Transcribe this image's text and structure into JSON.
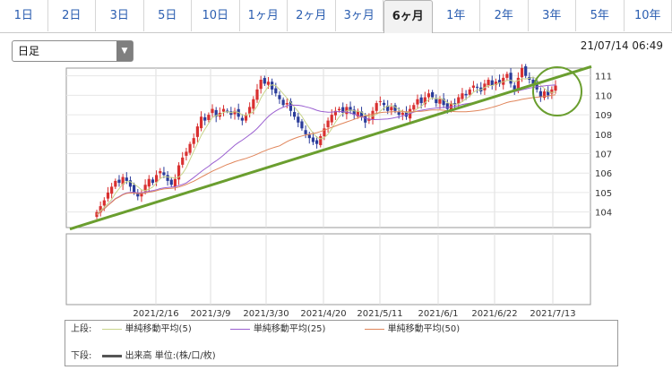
{
  "tabs": [
    {
      "label": "1日"
    },
    {
      "label": "2日"
    },
    {
      "label": "3日"
    },
    {
      "label": "5日"
    },
    {
      "label": "10日"
    },
    {
      "label": "1ヶ月"
    },
    {
      "label": "2ヶ月"
    },
    {
      "label": "3ヶ月"
    },
    {
      "label": "6ヶ月",
      "active": true
    },
    {
      "label": "1年"
    },
    {
      "label": "2年"
    },
    {
      "label": "3年"
    },
    {
      "label": "5年"
    },
    {
      "label": "10年"
    }
  ],
  "period_select": {
    "value": "日足"
  },
  "timestamp": "21/07/14 06:49",
  "chart_data": {
    "type": "candlestick",
    "y_ticks": [
      104,
      105,
      106,
      107,
      108,
      109,
      110,
      111
    ],
    "ylim": [
      103.2,
      111.4
    ],
    "x_ticks": [
      "2021/2/16",
      "2021/3/9",
      "2021/3/30",
      "2021/4/20",
      "2021/5/11",
      "2021/6/1",
      "2021/6/22",
      "2021/7/13"
    ],
    "closes": [
      104.0,
      104.3,
      104.6,
      105.0,
      105.3,
      105.6,
      105.5,
      105.8,
      105.6,
      105.3,
      105.0,
      104.8,
      105.0,
      105.4,
      105.7,
      105.5,
      105.9,
      106.1,
      105.9,
      105.6,
      105.4,
      105.7,
      106.4,
      106.8,
      107.1,
      107.5,
      107.8,
      108.4,
      108.9,
      108.7,
      109.0,
      109.3,
      108.9,
      109.1,
      109.3,
      109.2,
      109.0,
      109.2,
      108.9,
      108.7,
      109.0,
      109.4,
      109.8,
      110.3,
      110.8,
      110.6,
      110.7,
      110.3,
      110.1,
      109.8,
      109.5,
      109.6,
      109.2,
      108.9,
      108.6,
      108.3,
      108.0,
      107.8,
      107.6,
      107.5,
      107.9,
      108.3,
      108.7,
      109.0,
      109.2,
      109.3,
      109.1,
      109.4,
      109.2,
      109.0,
      109.2,
      108.9,
      108.6,
      108.8,
      109.2,
      109.6,
      109.7,
      109.5,
      109.2,
      109.4,
      109.2,
      109.0,
      109.1,
      108.9,
      109.3,
      109.5,
      109.8,
      109.6,
      109.9,
      110.1,
      109.9,
      109.6,
      109.8,
      109.5,
      109.3,
      109.6,
      109.5,
      109.9,
      110.1,
      110.0,
      110.3,
      110.5,
      110.4,
      110.2,
      110.6,
      110.8,
      110.5,
      110.7,
      110.6,
      110.9,
      111.1,
      110.6,
      110.3,
      110.9,
      111.4,
      111.0,
      110.8,
      110.6,
      110.3,
      109.9,
      110.2,
      110.0,
      110.3,
      110.5
    ],
    "moving_averages": [
      {
        "name": "単純移動平均(5)",
        "color": "#c8d48a"
      },
      {
        "name": "単純移動平均(25)",
        "color": "#9a5fd0"
      },
      {
        "name": "単純移動平均(50)",
        "color": "#e0855a"
      }
    ],
    "volume_axis": {
      "label": "出来高 単位:(株/口/枚)"
    },
    "annotations": {
      "trendline_color": "#6a9e2f",
      "circle_color": "#6a9e2f"
    }
  },
  "legend": {
    "upper_label": "上段:",
    "lower_label": "下段:",
    "sma5": "単純移動平均(5)",
    "sma25": "単純移動平均(25)",
    "sma50": "単純移動平均(50)",
    "volume": "出来高 単位:(株/口/枚)"
  }
}
